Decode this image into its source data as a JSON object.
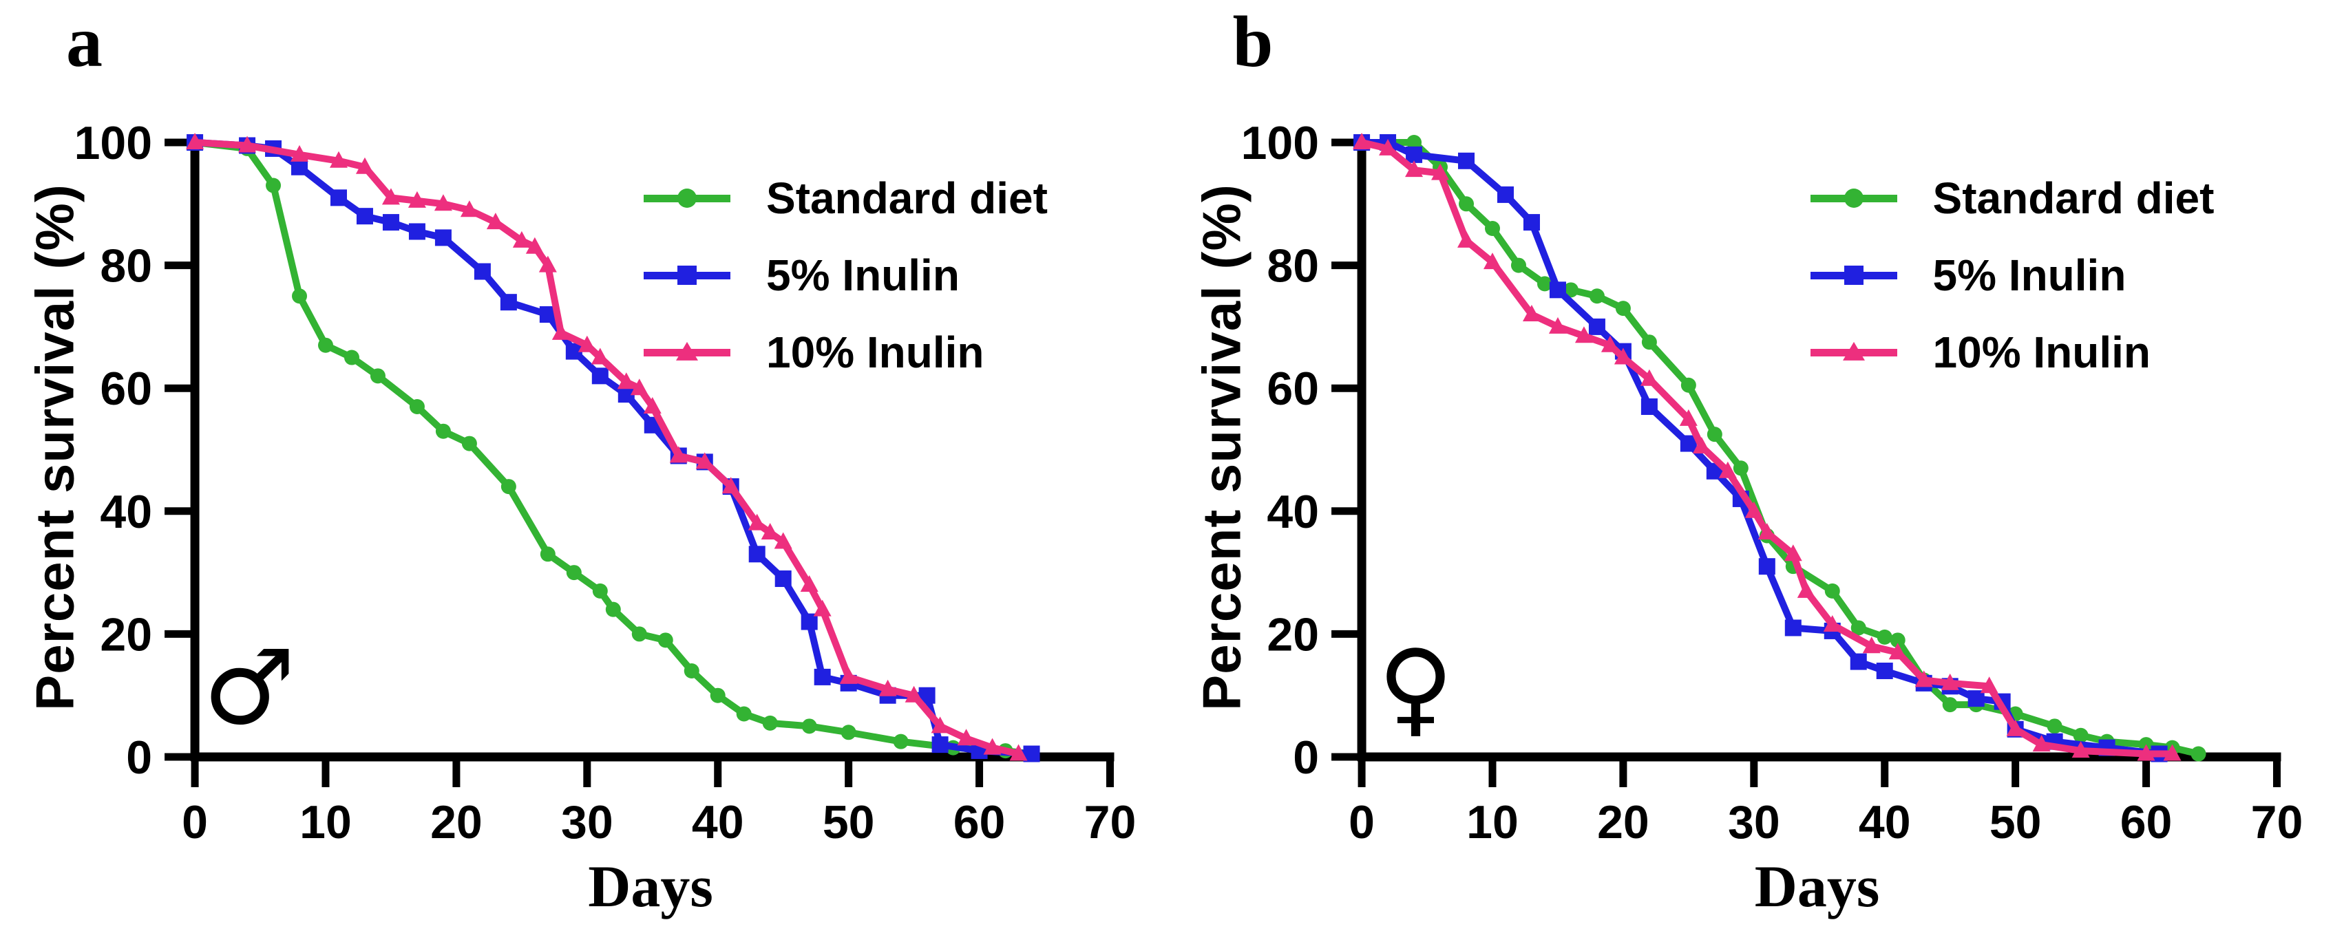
{
  "figure": {
    "background": "#ffffff",
    "axis_color": "#000000"
  },
  "chart_data": [
    {
      "type": "line",
      "panel_label": "a",
      "group": "male",
      "annotation_symbol": "♂",
      "xlabel": "Days",
      "ylabel": "Percent survival (%)",
      "xlim": [
        0,
        70
      ],
      "ylim": [
        0,
        100
      ],
      "xticks": [
        0,
        10,
        20,
        30,
        40,
        50,
        60,
        70
      ],
      "yticks": [
        0,
        20,
        40,
        60,
        80,
        100
      ],
      "grid": false,
      "legend_position": "top-right-inside",
      "series": [
        {
          "name": "Standard diet",
          "color": "#33b333",
          "marker": "circle",
          "x": [
            0,
            4,
            6,
            8,
            10,
            12,
            14,
            17,
            19,
            21,
            24,
            27,
            29,
            31,
            32,
            34,
            36,
            38,
            40,
            42,
            44,
            47,
            50,
            54,
            58,
            62,
            64
          ],
          "y": [
            100,
            99,
            93,
            75,
            67,
            65,
            62,
            57,
            53,
            51,
            44,
            33,
            30,
            27,
            24,
            20,
            19,
            14,
            10,
            7,
            5.5,
            5,
            4,
            2.5,
            1.5,
            1,
            0.5
          ]
        },
        {
          "name": "5% Inulin",
          "color": "#2020e0",
          "marker": "square",
          "x": [
            0,
            4,
            6,
            8,
            11,
            13,
            15,
            17,
            19,
            22,
            24,
            27,
            29,
            31,
            33,
            35,
            37,
            39,
            41,
            43,
            45,
            47,
            48,
            50,
            53,
            56,
            57,
            60,
            64
          ],
          "y": [
            100,
            99.5,
            99,
            96,
            91,
            88,
            87,
            85.5,
            84.5,
            79,
            74,
            72,
            66,
            62,
            59,
            54,
            49,
            48,
            44,
            33,
            29,
            22,
            13,
            12,
            10,
            10,
            2,
            1,
            0.5
          ]
        },
        {
          "name": "10% Inulin",
          "color": "#ed2f7e",
          "marker": "triangle",
          "x": [
            0,
            4,
            8,
            11,
            13,
            15,
            17,
            19,
            21,
            23,
            25,
            26,
            27,
            28,
            30,
            31,
            33,
            34,
            35,
            37,
            39,
            41,
            43,
            44,
            45,
            47,
            48,
            50,
            53,
            55,
            57,
            59,
            61,
            63
          ],
          "y": [
            100,
            99.5,
            98,
            97,
            96,
            91,
            90.5,
            90,
            89,
            87,
            84,
            83,
            80,
            69,
            67,
            65,
            61,
            60,
            57,
            49,
            48,
            44,
            38,
            36.5,
            35,
            28,
            24,
            13,
            11,
            10,
            5,
            3,
            1.5,
            0.5
          ]
        }
      ]
    },
    {
      "type": "line",
      "panel_label": "b",
      "group": "female",
      "annotation_symbol": "♀",
      "xlabel": "Days",
      "ylabel": "Percent survival (%)",
      "xlim": [
        0,
        70
      ],
      "ylim": [
        0,
        100
      ],
      "xticks": [
        0,
        10,
        20,
        30,
        40,
        50,
        60,
        70
      ],
      "yticks": [
        0,
        20,
        40,
        60,
        80,
        100
      ],
      "grid": false,
      "legend_position": "top-right-inside",
      "series": [
        {
          "name": "Standard diet",
          "color": "#33b333",
          "marker": "circle",
          "x": [
            0,
            2,
            4,
            6,
            8,
            10,
            12,
            14,
            16,
            18,
            20,
            22,
            25,
            27,
            29,
            31,
            33,
            36,
            38,
            40,
            41,
            43,
            45,
            47,
            50,
            53,
            55,
            57,
            60,
            62,
            64
          ],
          "y": [
            100,
            100,
            100,
            96,
            90,
            86,
            80,
            77,
            76,
            75,
            73,
            67.5,
            60.5,
            52.5,
            47,
            36,
            31,
            27,
            21,
            19.5,
            19,
            12.5,
            8.5,
            8.5,
            7,
            5,
            3.5,
            2.5,
            2,
            1.5,
            0.5
          ]
        },
        {
          "name": "5% Inulin",
          "color": "#2020e0",
          "marker": "square",
          "x": [
            0,
            2,
            4,
            8,
            11,
            13,
            15,
            18,
            20,
            22,
            25,
            27,
            29,
            31,
            33,
            36,
            38,
            40,
            43,
            45,
            47,
            49,
            50,
            53,
            57,
            61
          ],
          "y": [
            100,
            100,
            98,
            97,
            91.5,
            87,
            76,
            70,
            66,
            57,
            51,
            46.5,
            42,
            31,
            21,
            20.5,
            15.5,
            14,
            12,
            11.5,
            9.5,
            9,
            4.5,
            2.5,
            1.5,
            0.5
          ]
        },
        {
          "name": "10% Inulin",
          "color": "#ed2f7e",
          "marker": "triangle",
          "x": [
            0,
            2,
            4,
            6,
            8,
            10,
            13,
            15,
            17,
            19,
            20,
            22,
            25,
            26,
            28,
            30,
            31,
            33,
            34,
            36,
            39,
            41,
            43,
            45,
            48,
            50,
            52,
            55,
            60,
            62
          ],
          "y": [
            100,
            99,
            95.5,
            95,
            84,
            80.5,
            72,
            70,
            68.5,
            67,
            65,
            61.5,
            55,
            50.5,
            46.5,
            40,
            36.5,
            33,
            27,
            21.5,
            18,
            17,
            12.5,
            12,
            11.5,
            4.5,
            2,
            1,
            0.5,
            0.5
          ]
        }
      ]
    }
  ]
}
